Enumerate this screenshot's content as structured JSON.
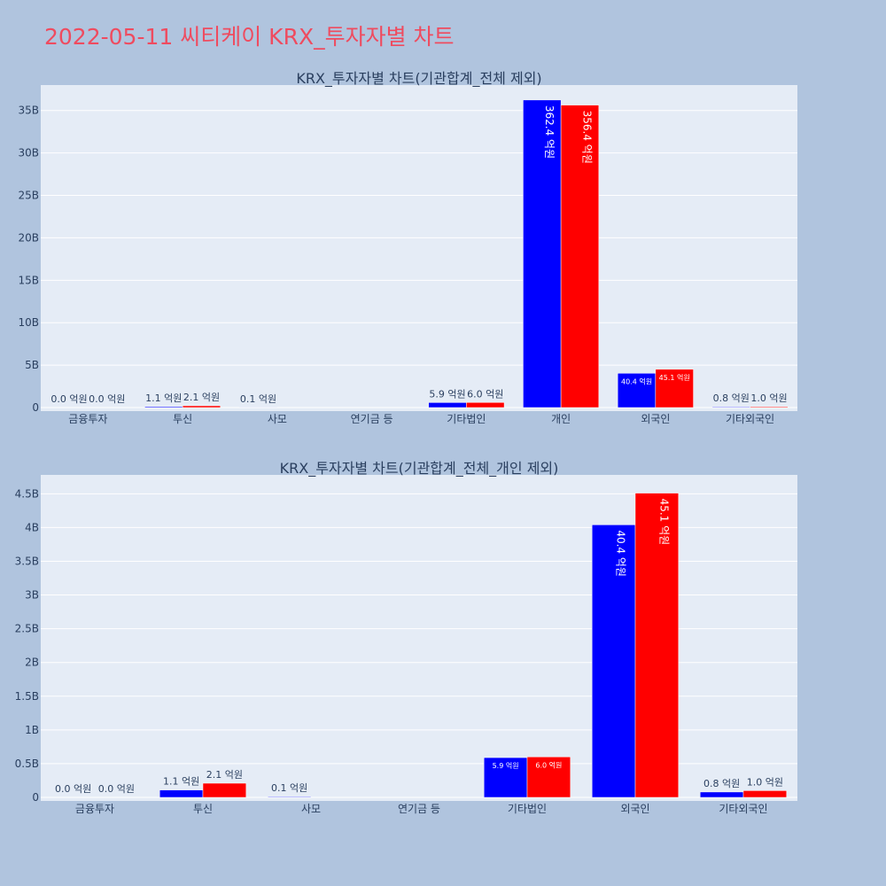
{
  "page_title": "2022-05-11 씨티케이 KRX_투자자별 차트",
  "colors": {
    "background": "#b0c4de",
    "plot_bg": "#e5ecf6",
    "title": "#ef4b5f",
    "series_a": "#0000ff",
    "series_b": "#ff0000"
  },
  "chart_data": [
    {
      "type": "bar",
      "title": "KRX_투자자별 차트(기관합계_전체 제외)",
      "categories": [
        "금융투자",
        "투신",
        "사모",
        "연기금 등",
        "기타법인",
        "개인",
        "외국인",
        "기타외국인"
      ],
      "ylim": [
        0,
        38000000000
      ],
      "yticks": [
        0,
        5000000000,
        10000000000,
        15000000000,
        20000000000,
        25000000000,
        30000000000,
        35000000000
      ],
      "ytick_labels": [
        "0",
        "5B",
        "10B",
        "15B",
        "20B",
        "25B",
        "30B",
        "35B"
      ],
      "grid": true,
      "series": [
        {
          "color": "#0000ff",
          "values": [
            0,
            110000000,
            10000000,
            null,
            590000000,
            36240000000,
            4040000000,
            80000000
          ],
          "labels": [
            "0.0 억원",
            "1.1 억원",
            "0.1 억원",
            "",
            "5.9 억원",
            "362.4 억원",
            "40.4 억원",
            "0.8 억원"
          ]
        },
        {
          "color": "#ff0000",
          "values": [
            0,
            210000000,
            null,
            null,
            600000000,
            35640000000,
            4510000000,
            100000000
          ],
          "labels": [
            "0.0 억원",
            "2.1 억원",
            "",
            "",
            "6.0 억원",
            "356.4 억원",
            "45.1 억원",
            "1.0 억원"
          ]
        }
      ]
    },
    {
      "type": "bar",
      "title": "KRX_투자자별 차트(기관합계_전체_개인 제외)",
      "categories": [
        "금융투자",
        "투신",
        "사모",
        "연기금 등",
        "기타법인",
        "외국인",
        "기타외국인"
      ],
      "ylim": [
        0,
        4780000000
      ],
      "yticks": [
        0,
        500000000,
        1000000000,
        1500000000,
        2000000000,
        2500000000,
        3000000000,
        3500000000,
        4000000000,
        4500000000
      ],
      "ytick_labels": [
        "0",
        "0.5B",
        "1B",
        "1.5B",
        "2B",
        "2.5B",
        "3B",
        "3.5B",
        "4B",
        "4.5B"
      ],
      "grid": true,
      "series": [
        {
          "color": "#0000ff",
          "values": [
            0,
            110000000,
            10000000,
            null,
            590000000,
            4040000000,
            80000000
          ],
          "labels": [
            "0.0 억원",
            "1.1 억원",
            "0.1 억원",
            "",
            "5.9 억원",
            "40.4 억원",
            "0.8 억원"
          ]
        },
        {
          "color": "#ff0000",
          "values": [
            0,
            210000000,
            null,
            null,
            600000000,
            4510000000,
            100000000
          ],
          "labels": [
            "0.0 억원",
            "2.1 억원",
            "",
            "",
            "6.0 억원",
            "45.1 억원",
            "1.0 억원"
          ]
        }
      ]
    }
  ]
}
